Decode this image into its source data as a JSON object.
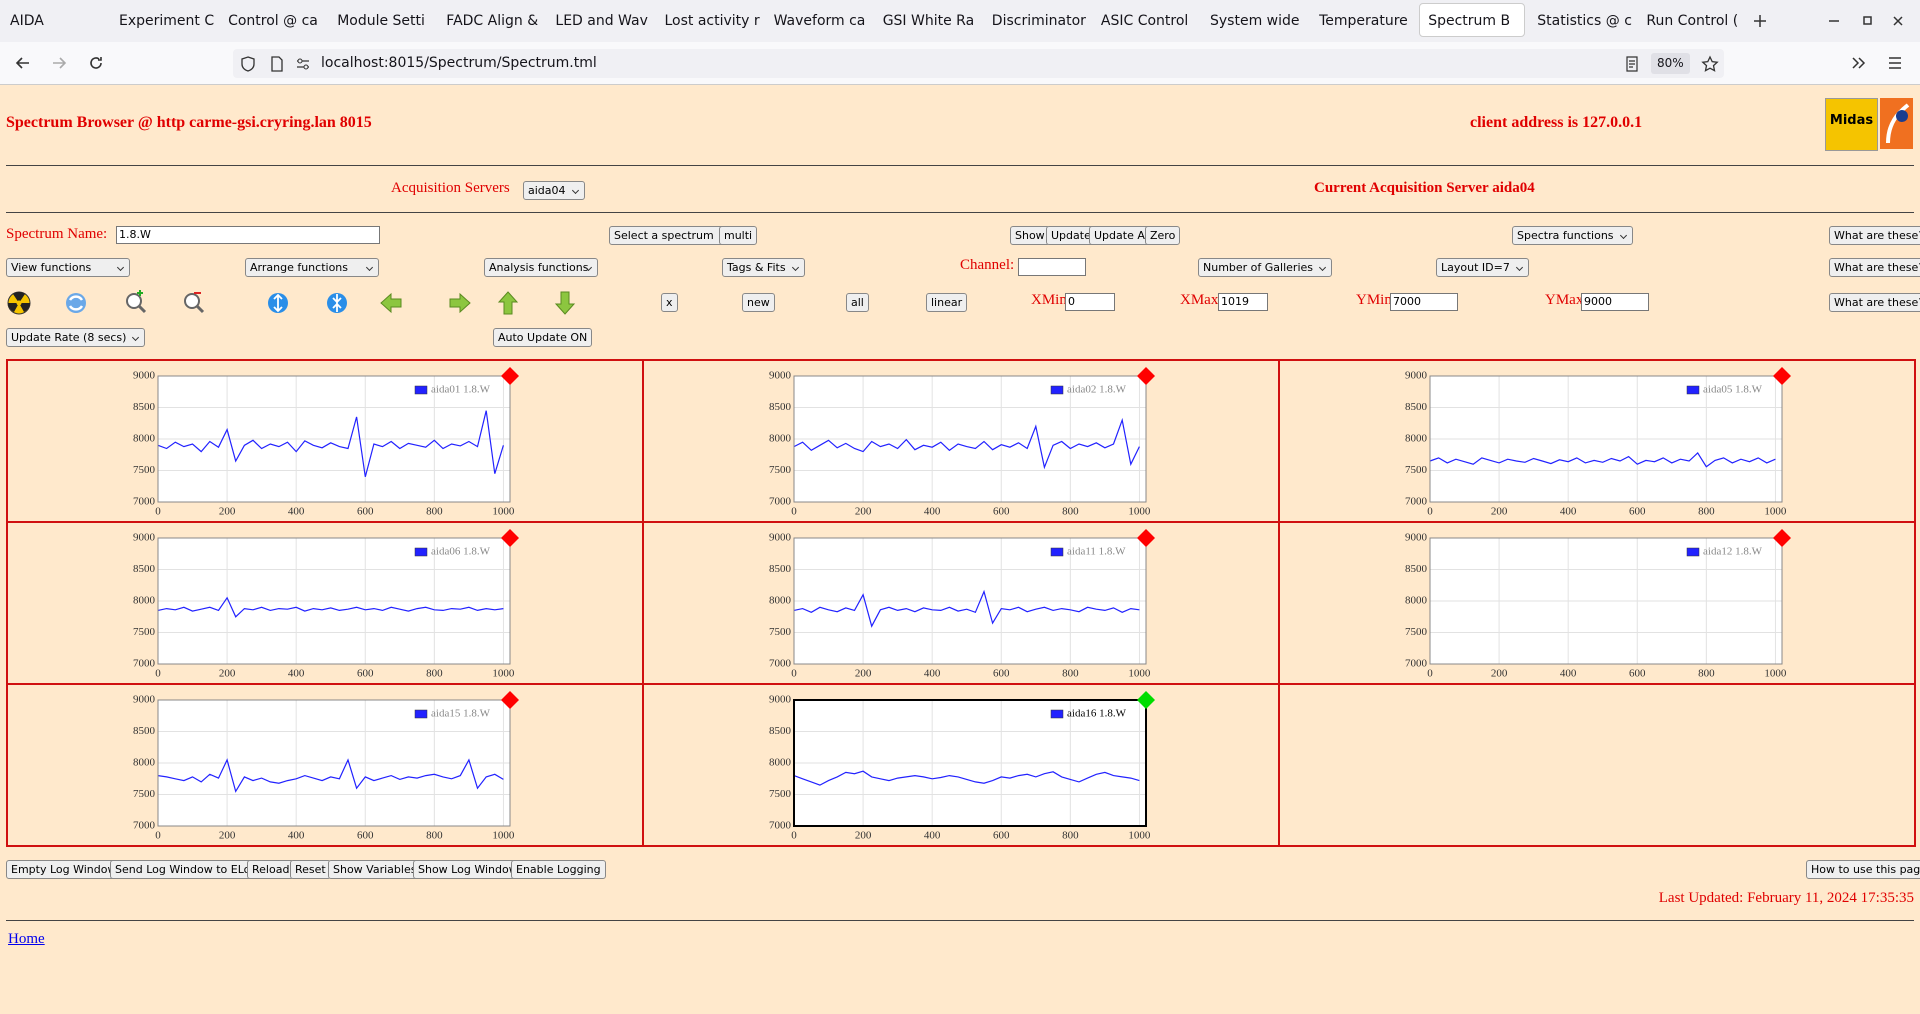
{
  "tabs": [
    "AIDA",
    "Experiment C",
    "Control @ ca",
    "Module Setti",
    "FADC Align &",
    "LED and Wav",
    "Lost activity r",
    "Waveform ca",
    "GSI White Ra",
    "Discriminator",
    "ASIC Control",
    "System wide",
    "Temperature",
    "Spectrum B",
    "Statistics @ c",
    "Run Control ("
  ],
  "url": "localhost:8015/Spectrum/Spectrum.tml",
  "zoom": "80%",
  "header": {
    "title": "Spectrum Browser @ http carme-gsi.cryring.lan 8015",
    "client": "client address is 127.0.0.1",
    "logo": "Midas"
  },
  "acquisition": {
    "label": "Acquisition Servers",
    "server_select": "aida04",
    "current": "Current Acquisition Server aida04"
  },
  "controls": {
    "spectrum_name_label": "Spectrum Name:",
    "spectrum_name": "1.8.W",
    "select_spectrum": "Select a spectrum",
    "multi": "multi",
    "show": "Show",
    "update": "Update",
    "update_all": "Update All",
    "zero": "Zero",
    "spectra_functions": "Spectra functions",
    "help": [
      "What are these?",
      "What are these?",
      "What are these?"
    ],
    "view_functions": "View functions",
    "arrange_functions": "Arrange functions",
    "analysis_functions": "Analysis functions",
    "tags_fits": "Tags & Fits",
    "channel_label": "Channel:",
    "galleries": "Number of Galleries",
    "layout": "Layout ID=7",
    "x": "x",
    "new": "new",
    "all": "all",
    "linear": "linear",
    "xmin_label": "XMin",
    "xmin": 0,
    "xmax_label": "XMax",
    "xmax": 1019,
    "ymin_label": "YMin",
    "ymin": 7000,
    "ymax_label": "YMax",
    "ymax": 9000,
    "update_rate": "Update Rate (8 secs)",
    "auto_update": "Auto Update ON"
  },
  "chart_data": [
    {
      "type": "line",
      "x": [
        0,
        25,
        50,
        75,
        100,
        125,
        150,
        175,
        200,
        225,
        250,
        275,
        300,
        325,
        350,
        375,
        400,
        425,
        450,
        475,
        500,
        525,
        550,
        575,
        600,
        625,
        650,
        675,
        700,
        725,
        750,
        775,
        800,
        825,
        850,
        875,
        900,
        925,
        950,
        975,
        1000
      ],
      "xlim": [
        0,
        1019
      ],
      "ylim": [
        7000,
        9000
      ],
      "xticks": [
        0,
        200,
        400,
        600,
        800,
        1000
      ],
      "yticks": [
        7000,
        7500,
        8000,
        8500,
        9000
      ],
      "grid": true,
      "marker_color": "#ff0000",
      "frame_color": "#888888",
      "series": [
        {
          "name": "aida01 1.8.W",
          "color": "#2222ff",
          "values": [
            7900,
            7850,
            7950,
            7880,
            7920,
            7800,
            7960,
            7870,
            8150,
            7650,
            7900,
            7980,
            7850,
            7920,
            7880,
            7950,
            7800,
            7970,
            7900,
            7860,
            7940,
            7880,
            7850,
            8350,
            7400,
            7920,
            7880,
            7960,
            7850,
            7930,
            7900,
            7870,
            7980,
            7850,
            7920,
            7890,
            7960,
            7880,
            8450,
            7450,
            7900
          ]
        }
      ]
    },
    {
      "type": "line",
      "x": [
        0,
        25,
        50,
        75,
        100,
        125,
        150,
        175,
        200,
        225,
        250,
        275,
        300,
        325,
        350,
        375,
        400,
        425,
        450,
        475,
        500,
        525,
        550,
        575,
        600,
        625,
        650,
        675,
        700,
        725,
        750,
        775,
        800,
        825,
        850,
        875,
        900,
        925,
        950,
        975,
        1000
      ],
      "xlim": [
        0,
        1019
      ],
      "ylim": [
        7000,
        9000
      ],
      "xticks": [
        0,
        200,
        400,
        600,
        800,
        1000
      ],
      "yticks": [
        7000,
        7500,
        8000,
        8500,
        9000
      ],
      "grid": true,
      "marker_color": "#ff0000",
      "frame_color": "#888888",
      "series": [
        {
          "name": "aida02 1.8.W",
          "color": "#2222ff",
          "values": [
            7880,
            7950,
            7820,
            7900,
            7980,
            7860,
            7930,
            7850,
            7800,
            7960,
            7880,
            7920,
            7850,
            7990,
            7830,
            7900,
            7870,
            7950,
            7820,
            7920,
            7880,
            7850,
            7960,
            7830,
            7910,
            7870,
            7940,
            7850,
            8200,
            7550,
            7900,
            7960,
            7850,
            7920,
            7880,
            7940,
            7860,
            7920,
            8300,
            7600,
            7880
          ]
        }
      ]
    },
    {
      "type": "line",
      "x": [
        0,
        25,
        50,
        75,
        100,
        125,
        150,
        175,
        200,
        225,
        250,
        275,
        300,
        325,
        350,
        375,
        400,
        425,
        450,
        475,
        500,
        525,
        550,
        575,
        600,
        625,
        650,
        675,
        700,
        725,
        750,
        775,
        800,
        825,
        850,
        875,
        900,
        925,
        950,
        975,
        1000
      ],
      "xlim": [
        0,
        1019
      ],
      "ylim": [
        7000,
        9000
      ],
      "xticks": [
        0,
        200,
        400,
        600,
        800,
        1000
      ],
      "yticks": [
        7000,
        7500,
        8000,
        8500,
        9000
      ],
      "grid": true,
      "marker_color": "#ff0000",
      "frame_color": "#888888",
      "series": [
        {
          "name": "aida05 1.8.W",
          "color": "#2222ff",
          "values": [
            7650,
            7700,
            7620,
            7680,
            7640,
            7600,
            7700,
            7660,
            7620,
            7680,
            7650,
            7630,
            7690,
            7650,
            7610,
            7670,
            7640,
            7700,
            7620,
            7660,
            7630,
            7690,
            7650,
            7720,
            7600,
            7660,
            7640,
            7700,
            7620,
            7680,
            7650,
            7780,
            7560,
            7660,
            7700,
            7620,
            7680,
            7640,
            7700,
            7620,
            7680
          ]
        }
      ]
    },
    {
      "type": "line",
      "x": [
        0,
        25,
        50,
        75,
        100,
        125,
        150,
        175,
        200,
        225,
        250,
        275,
        300,
        325,
        350,
        375,
        400,
        425,
        450,
        475,
        500,
        525,
        550,
        575,
        600,
        625,
        650,
        675,
        700,
        725,
        750,
        775,
        800,
        825,
        850,
        875,
        900,
        925,
        950,
        975,
        1000
      ],
      "xlim": [
        0,
        1019
      ],
      "ylim": [
        7000,
        9000
      ],
      "xticks": [
        0,
        200,
        400,
        600,
        800,
        1000
      ],
      "yticks": [
        7000,
        7500,
        8000,
        8500,
        9000
      ],
      "grid": true,
      "marker_color": "#ff0000",
      "frame_color": "#888888",
      "series": [
        {
          "name": "aida06 1.8.W",
          "color": "#2222ff",
          "values": [
            7850,
            7880,
            7860,
            7900,
            7840,
            7870,
            7900,
            7850,
            8050,
            7750,
            7880,
            7860,
            7900,
            7850,
            7880,
            7870,
            7900,
            7840,
            7880,
            7860,
            7890,
            7850,
            7870,
            7900,
            7860,
            7880,
            7850,
            7900,
            7870,
            7840,
            7880,
            7900,
            7860,
            7850,
            7880,
            7870,
            7900,
            7850,
            7880,
            7860,
            7880
          ]
        }
      ]
    },
    {
      "type": "line",
      "x": [
        0,
        25,
        50,
        75,
        100,
        125,
        150,
        175,
        200,
        225,
        250,
        275,
        300,
        325,
        350,
        375,
        400,
        425,
        450,
        475,
        500,
        525,
        550,
        575,
        600,
        625,
        650,
        675,
        700,
        725,
        750,
        775,
        800,
        825,
        850,
        875,
        900,
        925,
        950,
        975,
        1000
      ],
      "xlim": [
        0,
        1019
      ],
      "ylim": [
        7000,
        9000
      ],
      "xticks": [
        0,
        200,
        400,
        600,
        800,
        1000
      ],
      "yticks": [
        7000,
        7500,
        8000,
        8500,
        9000
      ],
      "grid": true,
      "marker_color": "#ff0000",
      "frame_color": "#888888",
      "series": [
        {
          "name": "aida11 1.8.W",
          "color": "#2222ff",
          "values": [
            7850,
            7880,
            7820,
            7900,
            7860,
            7830,
            7890,
            7850,
            8100,
            7600,
            7860,
            7900,
            7850,
            7880,
            7830,
            7890,
            7860,
            7850,
            7900,
            7840,
            7870,
            7820,
            8150,
            7650,
            7880,
            7860,
            7900,
            7830,
            7870,
            7900,
            7850,
            7880,
            7860,
            7830,
            7900,
            7870,
            7850,
            7890,
            7820,
            7880,
            7860
          ]
        }
      ]
    },
    {
      "type": "line",
      "x": [
        0,
        25,
        50,
        75,
        100,
        125,
        150,
        175,
        200,
        225,
        250,
        275,
        300,
        325,
        350,
        375,
        400,
        425,
        450,
        475,
        500,
        525,
        550,
        575,
        600,
        625,
        650,
        675,
        700,
        725,
        750,
        775,
        800,
        825,
        850,
        875,
        900,
        925,
        950,
        975,
        1000
      ],
      "xlim": [
        0,
        1019
      ],
      "ylim": [
        7000,
        9000
      ],
      "xticks": [
        0,
        200,
        400,
        600,
        800,
        1000
      ],
      "yticks": [
        7000,
        7500,
        8000,
        8500,
        9000
      ],
      "grid": true,
      "marker_color": "#ff0000",
      "frame_color": "#888888",
      "series": [
        {
          "name": "aida12 1.8.W",
          "color": "#2222ff",
          "values": [
            null,
            null,
            null,
            null,
            null,
            null,
            null,
            null,
            null,
            null,
            null,
            null,
            null,
            null,
            null,
            null,
            null,
            null,
            null,
            null,
            null,
            null,
            null,
            null,
            null,
            null,
            null,
            null,
            null,
            null,
            null,
            null,
            null,
            null,
            null,
            null,
            null,
            null,
            null,
            null,
            null
          ]
        }
      ]
    },
    {
      "type": "line",
      "x": [
        0,
        25,
        50,
        75,
        100,
        125,
        150,
        175,
        200,
        225,
        250,
        275,
        300,
        325,
        350,
        375,
        400,
        425,
        450,
        475,
        500,
        525,
        550,
        575,
        600,
        625,
        650,
        675,
        700,
        725,
        750,
        775,
        800,
        825,
        850,
        875,
        900,
        925,
        950,
        975,
        1000
      ],
      "xlim": [
        0,
        1019
      ],
      "ylim": [
        7000,
        9000
      ],
      "xticks": [
        0,
        200,
        400,
        600,
        800,
        1000
      ],
      "yticks": [
        7000,
        7500,
        8000,
        8500,
        9000
      ],
      "grid": true,
      "marker_color": "#ff0000",
      "frame_color": "#888888",
      "series": [
        {
          "name": "aida15 1.8.W",
          "color": "#2222ff",
          "values": [
            7800,
            7780,
            7750,
            7720,
            7780,
            7700,
            7820,
            7760,
            8050,
            7550,
            7780,
            7720,
            7760,
            7700,
            7680,
            7720,
            7750,
            7800,
            7760,
            7720,
            7780,
            7750,
            8050,
            7600,
            7780,
            7720,
            7760,
            7800,
            7740,
            7780,
            7760,
            7800,
            7820,
            7780,
            7750,
            7800,
            8050,
            7600,
            7780,
            7820,
            7740
          ]
        }
      ]
    },
    {
      "type": "line",
      "x": [
        0,
        25,
        50,
        75,
        100,
        125,
        150,
        175,
        200,
        225,
        250,
        275,
        300,
        325,
        350,
        375,
        400,
        425,
        450,
        475,
        500,
        525,
        550,
        575,
        600,
        625,
        650,
        675,
        700,
        725,
        750,
        775,
        800,
        825,
        850,
        875,
        900,
        925,
        950,
        975,
        1000
      ],
      "xlim": [
        0,
        1019
      ],
      "ylim": [
        7000,
        9000
      ],
      "xticks": [
        0,
        200,
        400,
        600,
        800,
        1000
      ],
      "yticks": [
        7000,
        7500,
        8000,
        8500,
        9000
      ],
      "grid": true,
      "marker_color": "#00dd00",
      "frame_color": "#000000",
      "series": [
        {
          "name": "aida16 1.8.W",
          "color": "#2222ff",
          "values": [
            7800,
            7750,
            7700,
            7650,
            7720,
            7780,
            7850,
            7830,
            7870,
            7780,
            7750,
            7720,
            7760,
            7780,
            7800,
            7780,
            7750,
            7770,
            7800,
            7780,
            7740,
            7700,
            7680,
            7720,
            7780,
            7760,
            7800,
            7820,
            7780,
            7830,
            7860,
            7780,
            7740,
            7700,
            7760,
            7820,
            7850,
            7800,
            7780,
            7760,
            7720
          ]
        }
      ]
    }
  ],
  "footer": {
    "log_buttons": [
      "Empty Log Window",
      "Send Log Window to ELog",
      "Reload",
      "Reset",
      "Show Variables",
      "Show Log Window",
      "Enable Logging"
    ],
    "how_to": "How to use this page",
    "last_updated": "Last Updated: February 11, 2024 17:35:35",
    "home": "Home"
  }
}
